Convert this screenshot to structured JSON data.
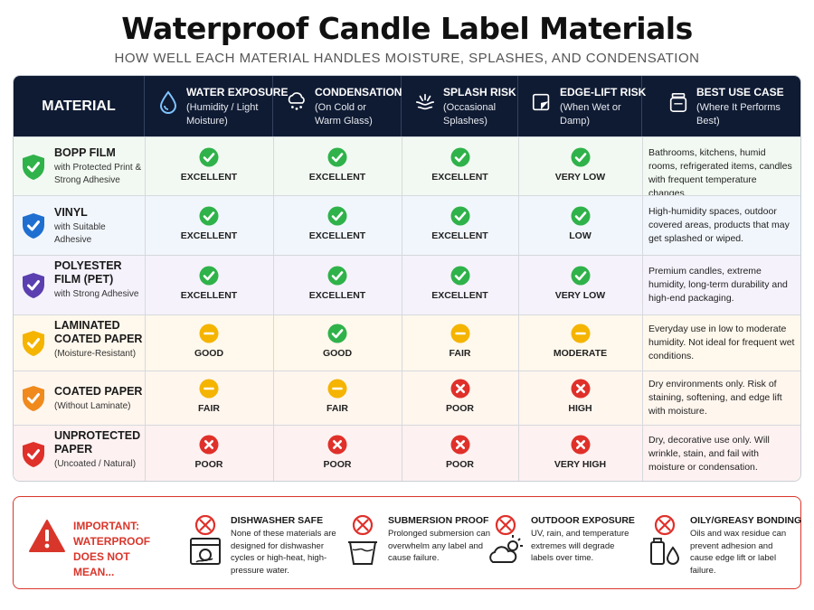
{
  "page": {
    "title": "Waterproof Candle Label Materials",
    "subtitle": "HOW WELL EACH MATERIAL HANDLES MOISTURE, SPLASHES, AND CONDENSATION"
  },
  "colors": {
    "header_bg": "#0f1b33",
    "good": "#2fb24a",
    "medium": "#f4b400",
    "bad": "#e0302a",
    "warning": "#d9362b"
  },
  "table": {
    "material_header": "MATERIAL",
    "columns": [
      {
        "title": "WATER EXPOSURE",
        "sub": "(Humidity / Light Moisture)",
        "icon": "water-drop-icon"
      },
      {
        "title": "CONDENSATION",
        "sub": "(On Cold or Warm Glass)",
        "icon": "cloud-rain-icon"
      },
      {
        "title": "SPLASH RISK",
        "sub": "(Occasional Splashes)",
        "icon": "splash-icon"
      },
      {
        "title": "EDGE-LIFT RISK",
        "sub": "(When Wet or Damp)",
        "icon": "peeling-label-icon"
      },
      {
        "title": "BEST USE CASE",
        "sub": "(Where It Performs Best)",
        "icon": "candle-jar-icon"
      }
    ],
    "rows": [
      {
        "name": "BOPP FILM",
        "sub": "with Protected Print & Strong Adhesive",
        "shield": "green",
        "ratings": [
          "EXCELLENT",
          "EXCELLENT",
          "EXCELLENT",
          "VERY LOW"
        ],
        "status": [
          "good",
          "good",
          "good",
          "good"
        ],
        "best": "Bathrooms, kitchens, humid rooms, refrigerated items, candles with frequent temperature changes."
      },
      {
        "name": "VINYL",
        "sub": "with Suitable Adhesive",
        "shield": "blue",
        "ratings": [
          "EXCELLENT",
          "EXCELLENT",
          "EXCELLENT",
          "LOW"
        ],
        "status": [
          "good",
          "good",
          "good",
          "good"
        ],
        "best": "High-humidity spaces, outdoor covered areas, products that may get splashed or wiped."
      },
      {
        "name": "POLYESTER FILM (PET)",
        "sub": "with Strong Adhesive",
        "shield": "purple",
        "ratings": [
          "EXCELLENT",
          "EXCELLENT",
          "EXCELLENT",
          "VERY LOW"
        ],
        "status": [
          "good",
          "good",
          "good",
          "good"
        ],
        "best": "Premium candles, extreme humidity, long-term durability and high-end packaging."
      },
      {
        "name": "LAMINATED COATED PAPER",
        "sub": "(Moisture-Resistant)",
        "shield": "yellow",
        "ratings": [
          "GOOD",
          "GOOD",
          "FAIR",
          "MODERATE"
        ],
        "status": [
          "medium",
          "good",
          "medium",
          "medium"
        ],
        "best": "Everyday use in low to moderate humidity. Not ideal for frequent wet conditions."
      },
      {
        "name": "COATED PAPER",
        "sub": "(Without Laminate)",
        "shield": "orange",
        "ratings": [
          "FAIR",
          "FAIR",
          "POOR",
          "HIGH"
        ],
        "status": [
          "medium",
          "medium",
          "bad",
          "bad"
        ],
        "best": "Dry environments only. Risk of staining, softening, and edge lift with moisture."
      },
      {
        "name": "UNPROTECTED PAPER",
        "sub": "(Uncoated / Natural)",
        "shield": "red",
        "ratings": [
          "POOR",
          "POOR",
          "POOR",
          "VERY HIGH"
        ],
        "status": [
          "bad",
          "bad",
          "bad",
          "bad"
        ],
        "best": "Dry, decorative use only. Will wrinkle, stain, and fail with moisture or condensation."
      }
    ]
  },
  "warning": {
    "label": "IMPORTANT: WATERPROOF DOES NOT MEAN...",
    "items": [
      {
        "title": "DISHWASHER SAFE",
        "desc": "None of these materials are designed for dishwasher cycles or high-heat, high-pressure water.",
        "icon": "dishwasher-icon"
      },
      {
        "title": "SUBMERSION PROOF",
        "desc": "Prolonged submersion can overwhelm any label and cause failure.",
        "icon": "bucket-icon"
      },
      {
        "title": "OUTDOOR EXPOSURE",
        "desc": "UV, rain, and temperature extremes will degrade labels over time.",
        "icon": "sun-cloud-icon"
      },
      {
        "title": "OILY/GREASY BONDING",
        "desc": "Oils and wax residue can prevent adhesion and cause edge lift or label failure.",
        "icon": "oil-bottle-icon"
      }
    ]
  }
}
